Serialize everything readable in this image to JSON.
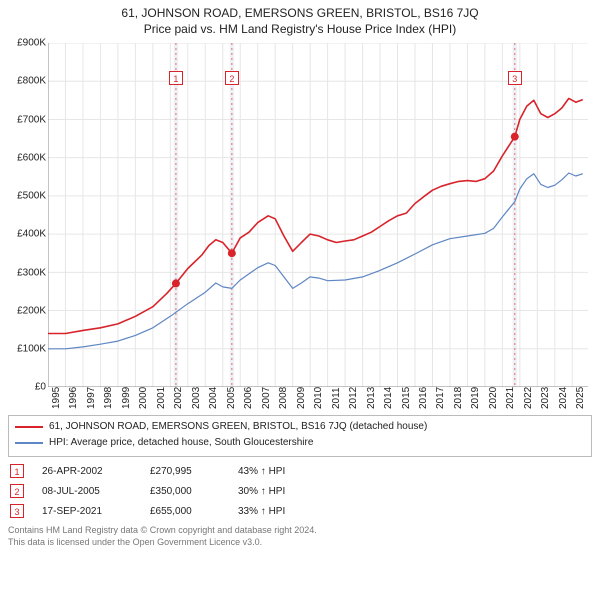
{
  "title": "61, JOHNSON ROAD, EMERSONS GREEN, BRISTOL, BS16 7JQ",
  "subtitle": "Price paid vs. HM Land Registry's House Price Index (HPI)",
  "chart": {
    "type": "line",
    "background_color": "#ffffff",
    "grid_color": "#e6e6e6",
    "axis_color": "#888888",
    "tick_font_size": 10,
    "x": {
      "min": 1995,
      "max": 2025.9,
      "ticks": [
        1995,
        1996,
        1997,
        1998,
        1999,
        2000,
        2001,
        2002,
        2003,
        2004,
        2005,
        2006,
        2007,
        2008,
        2009,
        2010,
        2011,
        2012,
        2013,
        2014,
        2015,
        2016,
        2017,
        2018,
        2019,
        2020,
        2021,
        2022,
        2023,
        2024,
        2025
      ],
      "labels": [
        "1995",
        "1996",
        "1997",
        "1998",
        "1999",
        "2000",
        "2001",
        "2002",
        "2003",
        "2004",
        "2005",
        "2006",
        "2007",
        "2008",
        "2009",
        "2010",
        "2011",
        "2012",
        "2013",
        "2014",
        "2015",
        "2016",
        "2017",
        "2018",
        "2019",
        "2020",
        "2021",
        "2022",
        "2023",
        "2024",
        "2025"
      ]
    },
    "y": {
      "min": 0,
      "max": 900000,
      "ticks": [
        0,
        100000,
        200000,
        300000,
        400000,
        500000,
        600000,
        700000,
        800000,
        900000
      ],
      "labels": [
        "£0",
        "£100K",
        "£200K",
        "£300K",
        "£400K",
        "£500K",
        "£600K",
        "£700K",
        "£800K",
        "£900K"
      ]
    },
    "bands": [
      {
        "from": 2002.2,
        "to": 2002.45,
        "fill": "#eef0f5"
      },
      {
        "from": 2005.4,
        "to": 2005.65,
        "fill": "#eef0f5"
      },
      {
        "from": 2021.58,
        "to": 2021.83,
        "fill": "#eef0f5"
      }
    ],
    "band_lines": [
      {
        "at": 2002.32,
        "stroke": "#e07070",
        "dash": "2,3"
      },
      {
        "at": 2005.52,
        "stroke": "#e07070",
        "dash": "2,3"
      },
      {
        "at": 2021.71,
        "stroke": "#e07070",
        "dash": "2,3"
      }
    ],
    "markers_above": [
      {
        "id": "1",
        "at": 2002.32,
        "y": 810000,
        "color": "#d8232a"
      },
      {
        "id": "2",
        "at": 2005.52,
        "y": 810000,
        "color": "#d8232a"
      },
      {
        "id": "3",
        "at": 2021.71,
        "y": 810000,
        "color": "#d8232a"
      }
    ],
    "series": [
      {
        "name": "property",
        "label": "61, JOHNSON ROAD, EMERSONS GREEN, BRISTOL, BS16 7JQ (detached house)",
        "color": "#d8232a",
        "width": 1.6,
        "points": [
          [
            1995.0,
            140000
          ],
          [
            1996.0,
            140000
          ],
          [
            1997.0,
            148000
          ],
          [
            1998.0,
            155000
          ],
          [
            1999.0,
            165000
          ],
          [
            2000.0,
            185000
          ],
          [
            2001.0,
            210000
          ],
          [
            2001.8,
            245000
          ],
          [
            2002.32,
            270995
          ],
          [
            2003.0,
            310000
          ],
          [
            2003.8,
            345000
          ],
          [
            2004.2,
            370000
          ],
          [
            2004.6,
            385000
          ],
          [
            2005.0,
            378000
          ],
          [
            2005.52,
            350000
          ],
          [
            2006.0,
            390000
          ],
          [
            2006.5,
            405000
          ],
          [
            2007.0,
            430000
          ],
          [
            2007.6,
            448000
          ],
          [
            2008.0,
            440000
          ],
          [
            2008.5,
            395000
          ],
          [
            2009.0,
            355000
          ],
          [
            2009.5,
            378000
          ],
          [
            2010.0,
            400000
          ],
          [
            2010.5,
            395000
          ],
          [
            2011.0,
            385000
          ],
          [
            2011.5,
            378000
          ],
          [
            2012.0,
            382000
          ],
          [
            2012.5,
            385000
          ],
          [
            2013.0,
            395000
          ],
          [
            2013.5,
            405000
          ],
          [
            2014.0,
            420000
          ],
          [
            2014.5,
            435000
          ],
          [
            2015.0,
            448000
          ],
          [
            2015.5,
            455000
          ],
          [
            2016.0,
            480000
          ],
          [
            2016.5,
            498000
          ],
          [
            2017.0,
            515000
          ],
          [
            2017.5,
            525000
          ],
          [
            2018.0,
            532000
          ],
          [
            2018.5,
            538000
          ],
          [
            2019.0,
            540000
          ],
          [
            2019.5,
            538000
          ],
          [
            2020.0,
            545000
          ],
          [
            2020.5,
            565000
          ],
          [
            2021.0,
            605000
          ],
          [
            2021.5,
            640000
          ],
          [
            2021.71,
            655000
          ],
          [
            2022.0,
            700000
          ],
          [
            2022.4,
            735000
          ],
          [
            2022.8,
            750000
          ],
          [
            2023.2,
            715000
          ],
          [
            2023.6,
            705000
          ],
          [
            2024.0,
            715000
          ],
          [
            2024.4,
            730000
          ],
          [
            2024.8,
            755000
          ],
          [
            2025.2,
            745000
          ],
          [
            2025.6,
            752000
          ]
        ],
        "sale_markers": [
          {
            "x": 2002.32,
            "y": 270995
          },
          {
            "x": 2005.52,
            "y": 350000
          },
          {
            "x": 2021.71,
            "y": 655000
          }
        ]
      },
      {
        "name": "hpi",
        "label": "HPI: Average price, detached house, South Gloucestershire",
        "color": "#5e86c4",
        "width": 1.2,
        "points": [
          [
            1995.0,
            100000
          ],
          [
            1996.0,
            100000
          ],
          [
            1997.0,
            105000
          ],
          [
            1998.0,
            112000
          ],
          [
            1999.0,
            120000
          ],
          [
            2000.0,
            135000
          ],
          [
            2001.0,
            155000
          ],
          [
            2002.0,
            185000
          ],
          [
            2003.0,
            218000
          ],
          [
            2004.0,
            248000
          ],
          [
            2004.6,
            272000
          ],
          [
            2005.0,
            262000
          ],
          [
            2005.52,
            258000
          ],
          [
            2006.0,
            280000
          ],
          [
            2007.0,
            312000
          ],
          [
            2007.6,
            325000
          ],
          [
            2008.0,
            318000
          ],
          [
            2008.5,
            288000
          ],
          [
            2009.0,
            258000
          ],
          [
            2009.5,
            272000
          ],
          [
            2010.0,
            288000
          ],
          [
            2010.5,
            285000
          ],
          [
            2011.0,
            278000
          ],
          [
            2012.0,
            280000
          ],
          [
            2013.0,
            288000
          ],
          [
            2014.0,
            305000
          ],
          [
            2015.0,
            325000
          ],
          [
            2016.0,
            348000
          ],
          [
            2017.0,
            372000
          ],
          [
            2018.0,
            388000
          ],
          [
            2019.0,
            395000
          ],
          [
            2020.0,
            402000
          ],
          [
            2020.5,
            415000
          ],
          [
            2021.0,
            445000
          ],
          [
            2021.71,
            485000
          ],
          [
            2022.0,
            518000
          ],
          [
            2022.4,
            545000
          ],
          [
            2022.8,
            558000
          ],
          [
            2023.2,
            530000
          ],
          [
            2023.6,
            522000
          ],
          [
            2024.0,
            528000
          ],
          [
            2024.4,
            542000
          ],
          [
            2024.8,
            560000
          ],
          [
            2025.2,
            552000
          ],
          [
            2025.6,
            558000
          ]
        ]
      }
    ]
  },
  "legend": {
    "rows": [
      {
        "color": "#d8232a",
        "label_ref": "chart.series.0.label"
      },
      {
        "color": "#5e86c4",
        "label_ref": "chart.series.1.label"
      }
    ]
  },
  "sales": [
    {
      "id": "1",
      "date": "26-APR-2002",
      "price": "£270,995",
      "vs": "43% ↑ HPI",
      "color": "#d8232a"
    },
    {
      "id": "2",
      "date": "08-JUL-2005",
      "price": "£350,000",
      "vs": "30% ↑ HPI",
      "color": "#d8232a"
    },
    {
      "id": "3",
      "date": "17-SEP-2021",
      "price": "£655,000",
      "vs": "33% ↑ HPI",
      "color": "#d8232a"
    }
  ],
  "footer": {
    "line1": "Contains HM Land Registry data © Crown copyright and database right 2024.",
    "line2": "This data is licensed under the Open Government Licence v3.0."
  }
}
